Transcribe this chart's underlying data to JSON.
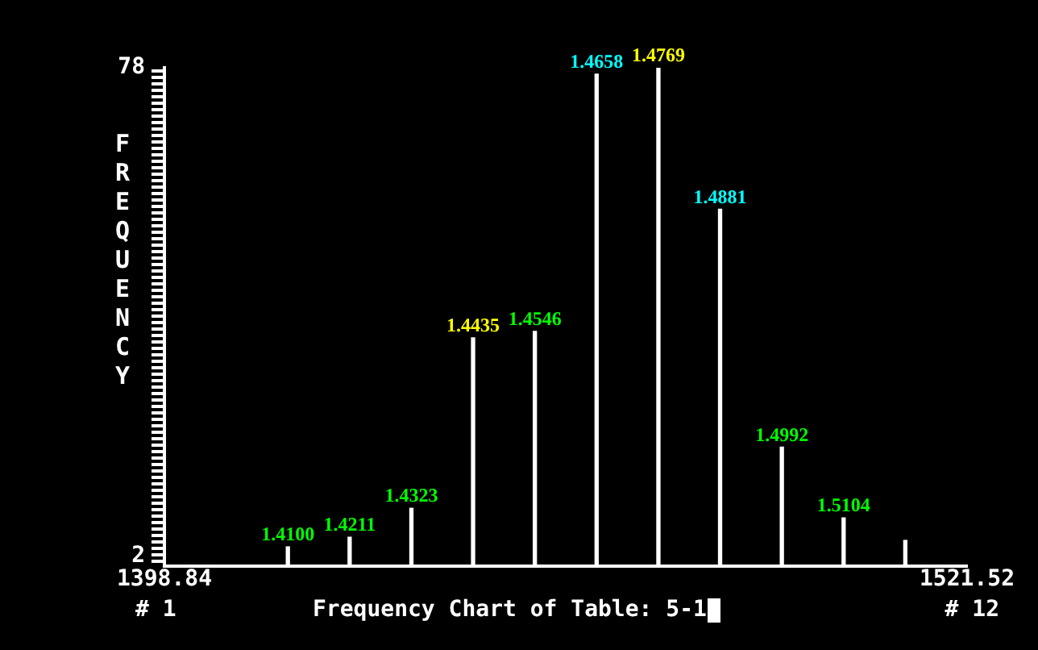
{
  "chart_data": {
    "type": "bar",
    "title": "Frequency Chart of Table: 5-1",
    "ylabel": "FREQUENCY",
    "x": [
      1417.71,
      1427.15,
      1436.59,
      1446.02,
      1455.46,
      1464.9,
      1474.34,
      1483.77,
      1493.21,
      1502.65,
      1512.08
    ],
    "values": [
      3.5,
      5,
      9.5,
      36,
      37,
      77,
      78,
      56,
      19,
      8,
      4.5
    ],
    "color": "#ffffff",
    "xlim": [
      1398.84,
      1521.52
    ],
    "xticks": [
      1398.84,
      1521.52
    ],
    "ylim": [
      0.5,
      78
    ],
    "yticks": [
      2,
      78
    ],
    "annotations": [
      "# 1",
      "# 12",
      {
        "text": "1.4100",
        "x": 1417.71,
        "y": 3.5
      },
      {
        "text": "1.4211",
        "x": 1427.15,
        "y": 5
      },
      {
        "text": "1.4323",
        "x": 1436.59,
        "y": 9.5
      },
      {
        "text": "1.4435",
        "x": 1446.02,
        "y": 36
      },
      {
        "text": "1.4546",
        "x": 1455.46,
        "y": 37
      },
      {
        "text": "1.4658",
        "x": 1464.9,
        "y": 77
      },
      {
        "text": "1.4769",
        "x": 1474.34,
        "y": 78
      },
      {
        "text": "1.4881",
        "x": 1483.77,
        "y": 56
      },
      {
        "text": "1.4992",
        "x": 1493.21,
        "y": 19
      },
      {
        "text": "1.5104",
        "x": 1502.65,
        "y": 8
      }
    ],
    "grid": false,
    "legend": false
  }
}
